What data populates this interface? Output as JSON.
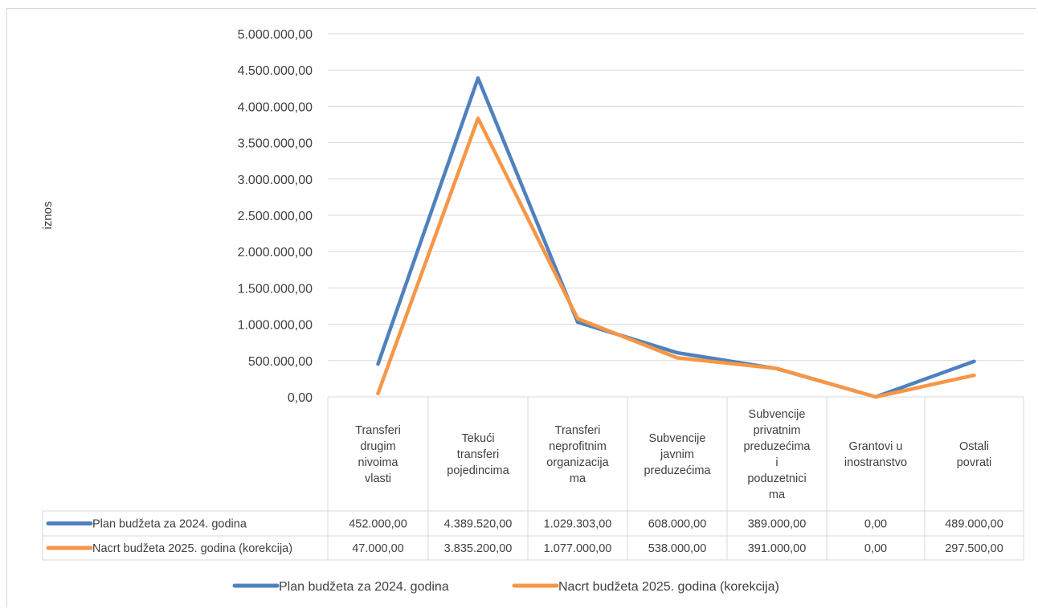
{
  "chart_data": {
    "type": "line",
    "ylabel": "iznos",
    "xlabel": "",
    "ylim": [
      0,
      5000000
    ],
    "y_ticks": [
      0,
      500000,
      1000000,
      1500000,
      2000000,
      2500000,
      3000000,
      3500000,
      4000000,
      4500000,
      5000000
    ],
    "y_tick_labels": [
      "0,00",
      "500.000,00",
      "1.000.000,00",
      "1.500.000,00",
      "2.000.000,00",
      "2.500.000,00",
      "3.000.000,00",
      "3.500.000,00",
      "4.000.000,00",
      "4.500.000,00",
      "5.000.000,00"
    ],
    "categories": [
      [
        "Transferi",
        "drugim",
        "nivoima",
        "vlasti"
      ],
      [
        "Tekući",
        "transferi",
        "pojedincima"
      ],
      [
        "Transferi",
        "neprofitnim",
        "organizacija",
        "ma"
      ],
      [
        "Subvencije",
        "javnim",
        "preduzećima"
      ],
      [
        "Subvencije",
        "privatnim",
        "preduzećima",
        "i",
        "poduzetnici",
        "ma"
      ],
      [
        "Grantovi u",
        "inostranstvo"
      ],
      [
        "Ostali",
        "povrati"
      ]
    ],
    "grid": true,
    "legend_position": "bottom",
    "data_table": true,
    "series": [
      {
        "name": "Plan budžeta za 2024. godina",
        "color": "#4f81bd",
        "values": [
          452000,
          4389520,
          1029303,
          608000,
          389000,
          0,
          489000
        ],
        "labels": [
          "452.000,00",
          "4.389.520,00",
          "1.029.303,00",
          "608.000,00",
          "389.000,00",
          "0,00",
          "489.000,00"
        ]
      },
      {
        "name": "Nacrt budžeta 2025. godina (korekcija)",
        "color": "#f79646",
        "values": [
          47000,
          3835200,
          1077000,
          538000,
          391000,
          0,
          297500
        ],
        "labels": [
          "47.000,00",
          "3.835.200,00",
          "1.077.000,00",
          "538.000,00",
          "391.000,00",
          "0,00",
          "297.500,00"
        ]
      }
    ]
  }
}
